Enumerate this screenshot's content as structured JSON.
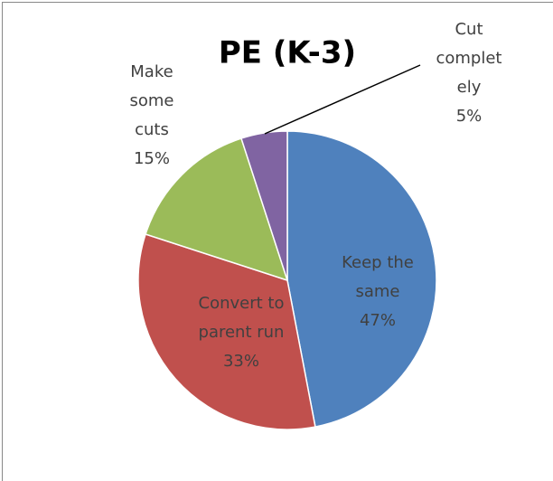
{
  "chart_data": {
    "type": "pie",
    "title": "PE (K-3)",
    "categories": [
      "Keep the same",
      "Convert to parent run",
      "Make some cuts",
      "Cut completely"
    ],
    "values": [
      47,
      33,
      15,
      5
    ],
    "value_labels": [
      "47%",
      "33%",
      "15%",
      "5%"
    ],
    "colors": [
      "#4f81bd",
      "#c0504d",
      "#9bbb59",
      "#8064a2"
    ]
  }
}
